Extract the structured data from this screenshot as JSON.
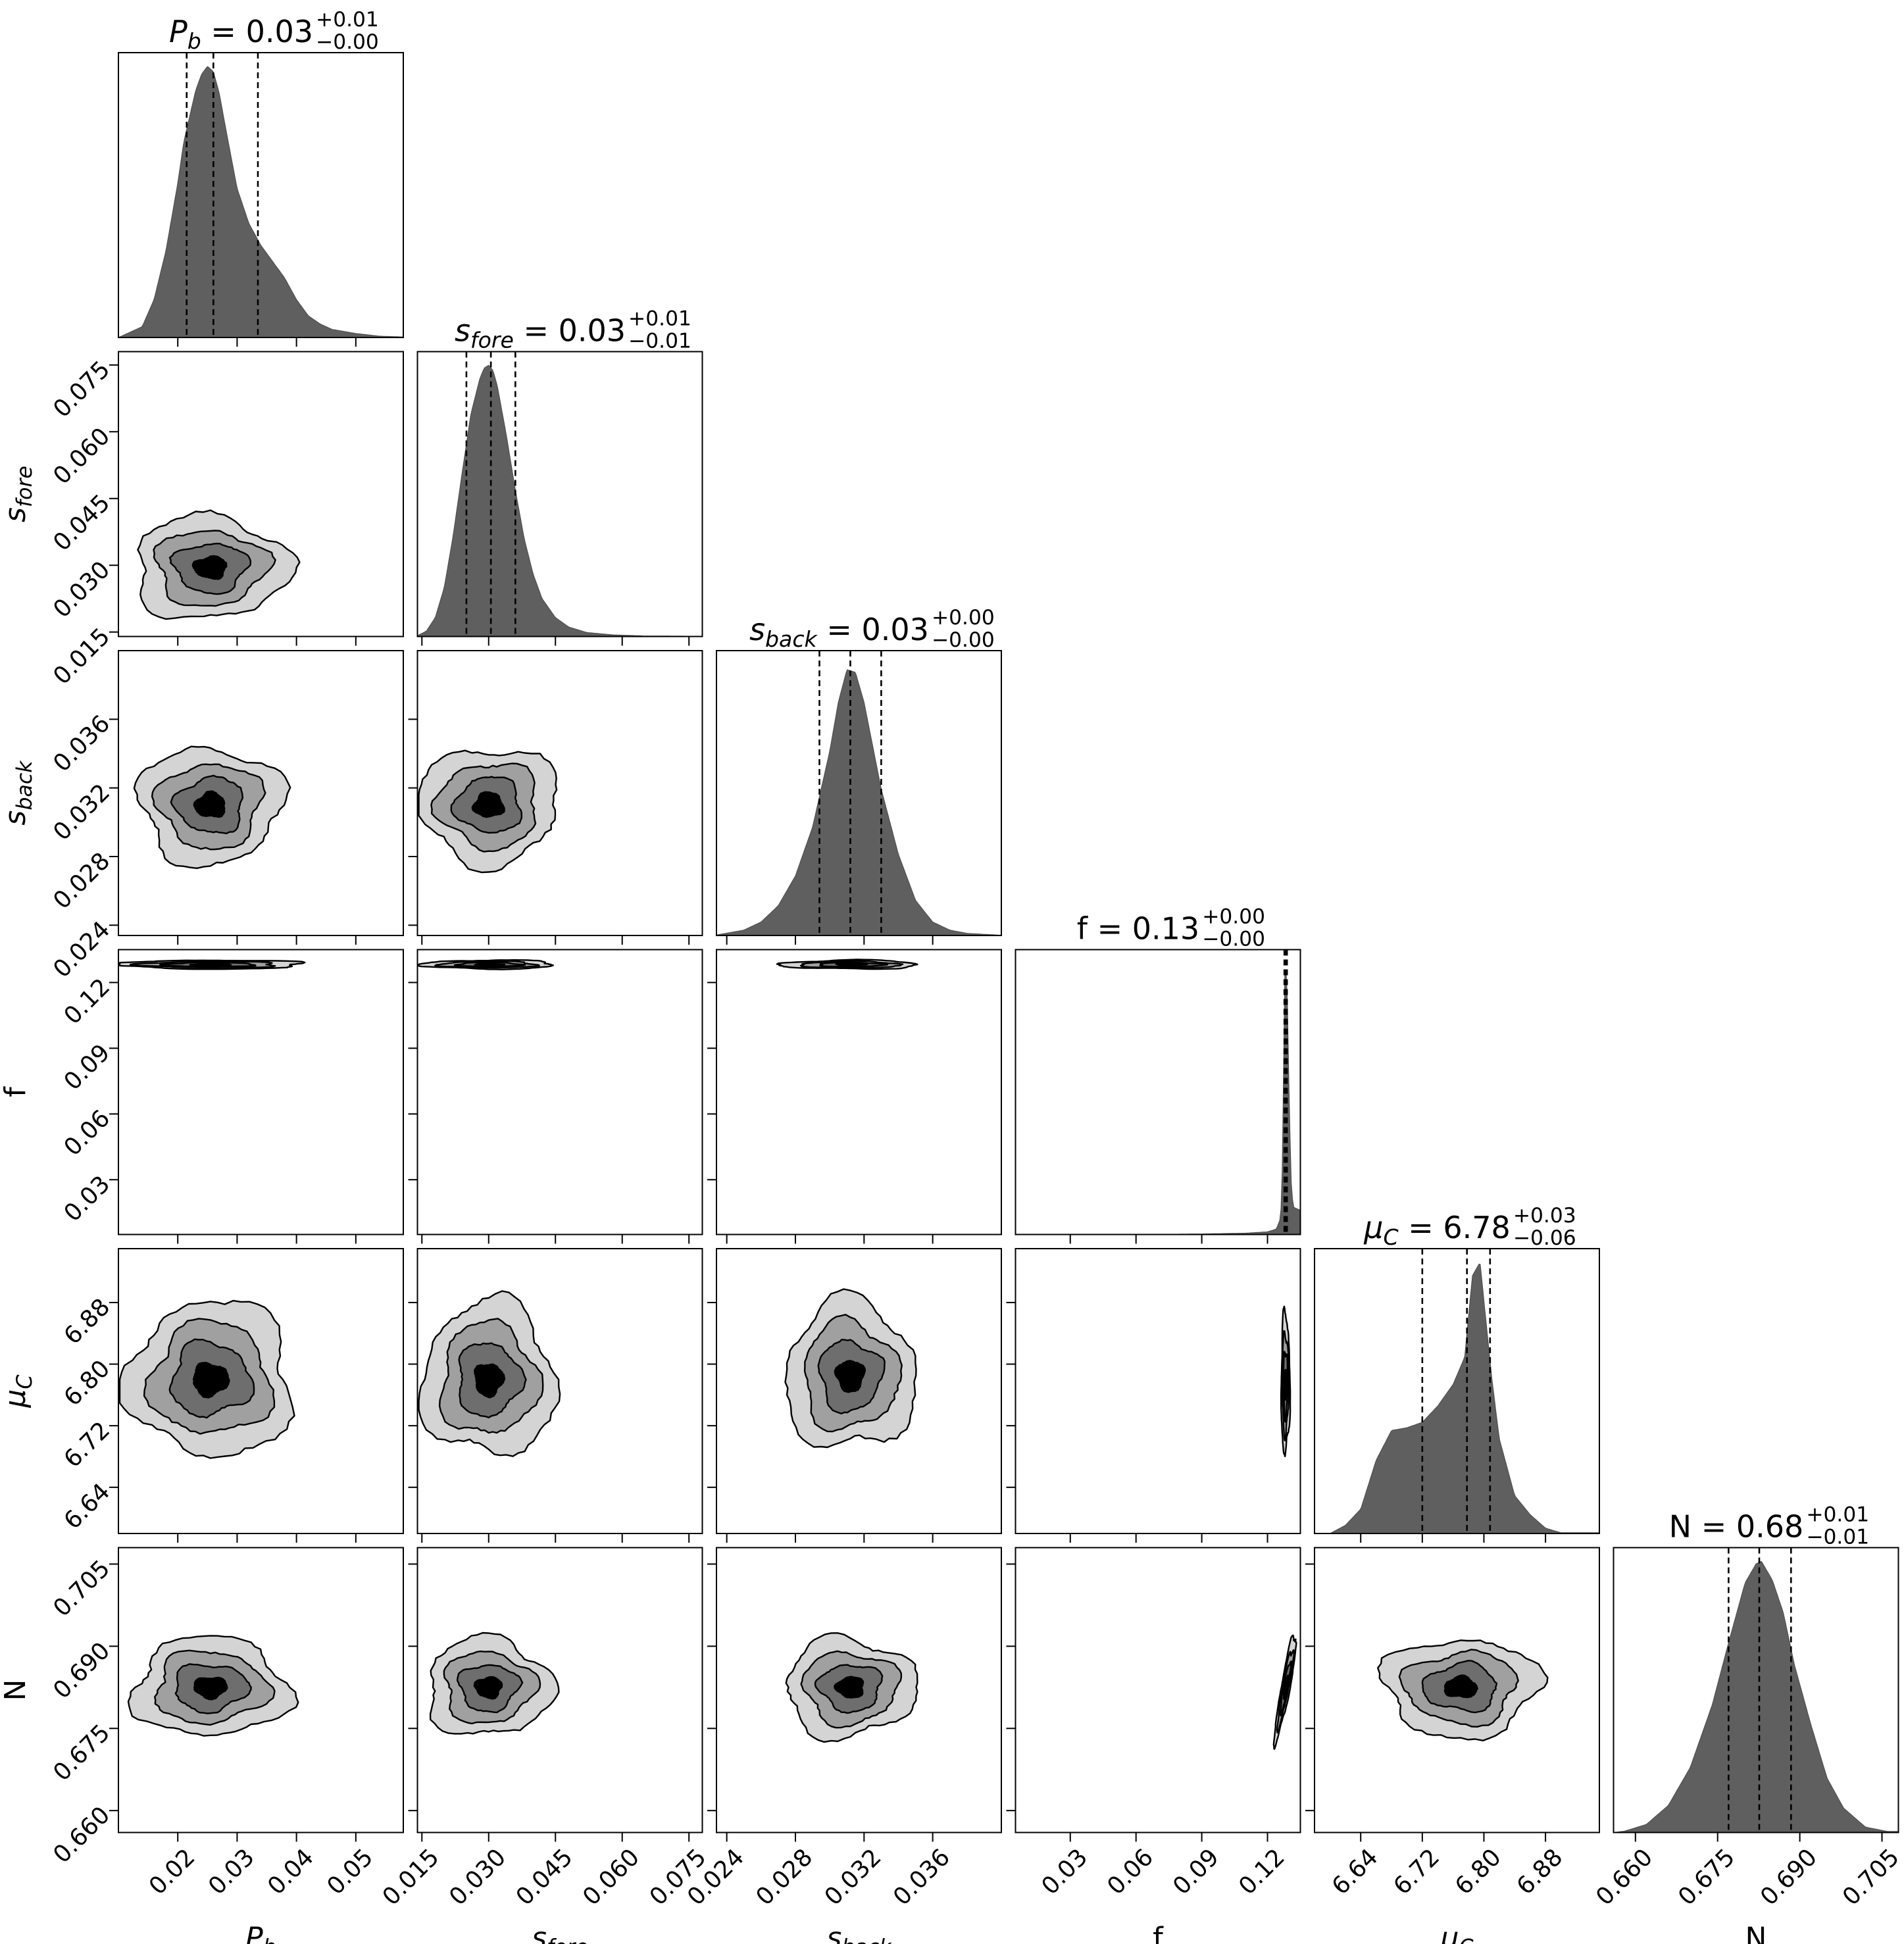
{
  "chart_data": {
    "type": "corner",
    "description_words": "posterior corner plot",
    "parameters": [
      {
        "key": "Pb",
        "label": "P",
        "label_sub": "b",
        "range": [
          0.01,
          0.058
        ],
        "ticks": [
          0.02,
          0.03,
          0.04,
          0.05
        ],
        "tick_labels": [
          "0.02",
          "0.03",
          "0.04",
          "0.05"
        ],
        "title_value": "0.03",
        "title_plus": "+0.01",
        "title_minus": "−0.00",
        "quantiles": [
          0.0215,
          0.026,
          0.0335
        ]
      },
      {
        "key": "sfore",
        "label": "s",
        "label_sub": "fore",
        "range": [
          0.014,
          0.078
        ],
        "ticks": [
          0.015,
          0.03,
          0.045,
          0.06,
          0.075
        ],
        "tick_labels": [
          "0.015",
          "0.030",
          "0.045",
          "0.060",
          "0.075"
        ],
        "title_value": "0.03",
        "title_plus": "+0.01",
        "title_minus": "−0.01",
        "quantiles": [
          0.025,
          0.0305,
          0.036
        ]
      },
      {
        "key": "sback",
        "label": "s",
        "label_sub": "back",
        "range": [
          0.0234,
          0.04
        ],
        "ticks": [
          0.024,
          0.028,
          0.032,
          0.036
        ],
        "tick_labels": [
          "0.024",
          "0.028",
          "0.032",
          "0.036"
        ],
        "title_value": "0.03",
        "title_plus": "+0.00",
        "title_minus": "−0.00",
        "quantiles": [
          0.0294,
          0.0312,
          0.033
        ]
      },
      {
        "key": "f",
        "label": "f",
        "label_sub": "",
        "range": [
          0.005,
          0.135
        ],
        "ticks": [
          0.03,
          0.06,
          0.09,
          0.12
        ],
        "tick_labels": [
          "0.03",
          "0.06",
          "0.09",
          "0.12"
        ],
        "title_value": "0.13",
        "title_plus": "+0.00",
        "title_minus": "−0.00",
        "quantiles": [
          0.1277,
          0.1283,
          0.1289
        ]
      },
      {
        "key": "muC",
        "label": "μ",
        "label_sub": "C",
        "range": [
          6.58,
          6.95
        ],
        "ticks": [
          6.64,
          6.72,
          6.8,
          6.88
        ],
        "tick_labels": [
          "6.64",
          "6.72",
          "6.80",
          "6.88"
        ],
        "title_value": "6.78",
        "title_plus": "+0.03",
        "title_minus": "−0.06",
        "quantiles": [
          6.72,
          6.778,
          6.808
        ]
      },
      {
        "key": "N",
        "label": "N",
        "label_sub": "",
        "range": [
          0.656,
          0.708
        ],
        "ticks": [
          0.66,
          0.675,
          0.69,
          0.705
        ],
        "tick_labels": [
          "0.660",
          "0.675",
          "0.690",
          "0.705"
        ],
        "title_value": "0.68",
        "title_plus": "+0.01",
        "title_minus": "−0.01",
        "quantiles": [
          0.677,
          0.6826,
          0.6884
        ]
      }
    ],
    "marginals": {
      "Pb": {
        "x": [
          0.011,
          0.014,
          0.016,
          0.018,
          0.02,
          0.021,
          0.023,
          0.024,
          0.025,
          0.026,
          0.027,
          0.028,
          0.03,
          0.032,
          0.034,
          0.036,
          0.038,
          0.04,
          0.042,
          0.044,
          0.046,
          0.05,
          0.054,
          0.058
        ],
        "y": [
          0.01,
          0.04,
          0.14,
          0.32,
          0.57,
          0.72,
          0.91,
          0.97,
          1.0,
          0.98,
          0.9,
          0.78,
          0.55,
          0.42,
          0.34,
          0.28,
          0.22,
          0.14,
          0.08,
          0.05,
          0.03,
          0.015,
          0.005,
          0.002
        ]
      },
      "sfore": {
        "x": [
          0.014,
          0.016,
          0.018,
          0.02,
          0.022,
          0.024,
          0.026,
          0.028,
          0.029,
          0.03,
          0.031,
          0.032,
          0.034,
          0.036,
          0.038,
          0.04,
          0.042,
          0.045,
          0.048,
          0.052,
          0.058,
          0.065,
          0.078
        ],
        "y": [
          0.003,
          0.02,
          0.07,
          0.18,
          0.37,
          0.6,
          0.82,
          0.95,
          0.99,
          1.0,
          0.98,
          0.92,
          0.74,
          0.54,
          0.36,
          0.23,
          0.14,
          0.07,
          0.035,
          0.015,
          0.006,
          0.002,
          0.001
        ]
      },
      "sback": {
        "x": [
          0.0234,
          0.025,
          0.026,
          0.027,
          0.028,
          0.029,
          0.03,
          0.0305,
          0.031,
          0.0315,
          0.032,
          0.0325,
          0.033,
          0.034,
          0.035,
          0.036,
          0.037,
          0.038,
          0.04
        ],
        "y": [
          0.002,
          0.02,
          0.05,
          0.11,
          0.22,
          0.4,
          0.68,
          0.86,
          0.98,
          0.97,
          0.86,
          0.7,
          0.54,
          0.3,
          0.13,
          0.05,
          0.02,
          0.008,
          0.001
        ]
      },
      "f": {
        "x": [
          0.06,
          0.09,
          0.11,
          0.12,
          0.124,
          0.126,
          0.127,
          0.1277,
          0.1283,
          0.129,
          0.13,
          0.131,
          0.132,
          0.135
        ],
        "y": [
          0.0,
          0.002,
          0.005,
          0.01,
          0.02,
          0.06,
          0.3,
          0.95,
          1.0,
          0.9,
          0.45,
          0.15,
          0.1,
          0.09
        ]
      },
      "muC": {
        "x": [
          6.6,
          6.62,
          6.64,
          6.66,
          6.68,
          6.7,
          6.72,
          6.74,
          6.76,
          6.775,
          6.785,
          6.795,
          6.8,
          6.81,
          6.82,
          6.84,
          6.86,
          6.88,
          6.9
        ],
        "y": [
          0.0,
          0.03,
          0.09,
          0.27,
          0.38,
          0.39,
          0.41,
          0.47,
          0.55,
          0.65,
          0.95,
          1.0,
          0.86,
          0.58,
          0.35,
          0.14,
          0.07,
          0.02,
          0.003
        ]
      },
      "N": {
        "x": [
          0.658,
          0.662,
          0.666,
          0.67,
          0.674,
          0.677,
          0.68,
          0.682,
          0.683,
          0.685,
          0.687,
          0.689,
          0.692,
          0.695,
          0.698,
          0.702,
          0.706
        ],
        "y": [
          0.005,
          0.03,
          0.1,
          0.24,
          0.47,
          0.7,
          0.92,
          0.99,
          1.0,
          0.93,
          0.81,
          0.62,
          0.4,
          0.2,
          0.09,
          0.02,
          0.004
        ]
      }
    },
    "contour_centers": [
      {
        "row": "sfore",
        "col": "Pb",
        "center": [
          0.0255,
          0.0295
        ],
        "spread": [
          0.0065,
          0.0058
        ],
        "rho": 0.0
      },
      {
        "row": "sback",
        "col": "Pb",
        "center": [
          0.0255,
          0.031
        ],
        "spread": [
          0.006,
          0.0017
        ],
        "rho": 0.0
      },
      {
        "row": "sback",
        "col": "sfore",
        "center": [
          0.03,
          0.031
        ],
        "spread": [
          0.0078,
          0.0017
        ],
        "rho": 0.0
      },
      {
        "row": "f",
        "col": "Pb",
        "center": [
          0.0255,
          0.1282
        ],
        "spread": [
          0.008,
          0.001
        ],
        "rho": 0.0
      },
      {
        "row": "f",
        "col": "sfore",
        "center": [
          0.03,
          0.1282
        ],
        "spread": [
          0.0075,
          0.001
        ],
        "rho": 0.0
      },
      {
        "row": "f",
        "col": "sback",
        "center": [
          0.0312,
          0.1282
        ],
        "spread": [
          0.002,
          0.001
        ],
        "rho": 0.0
      },
      {
        "row": "muC",
        "col": "Pb",
        "center": [
          0.0255,
          6.78
        ],
        "spread": [
          0.007,
          0.05
        ],
        "rho": 0.0
      },
      {
        "row": "muC",
        "col": "sfore",
        "center": [
          0.03,
          6.78
        ],
        "spread": [
          0.0075,
          0.05
        ],
        "rho": 0.0
      },
      {
        "row": "muC",
        "col": "sback",
        "center": [
          0.0312,
          6.785
        ],
        "spread": [
          0.0019,
          0.048
        ],
        "rho": 0.0
      },
      {
        "row": "muC",
        "col": "f",
        "center": [
          0.1282,
          6.775
        ],
        "spread": [
          0.001,
          0.045
        ],
        "rho": 0.0
      },
      {
        "row": "N",
        "col": "Pb",
        "center": [
          0.0255,
          0.6825
        ],
        "spread": [
          0.0065,
          0.0045
        ],
        "rho": 0.0
      },
      {
        "row": "N",
        "col": "sfore",
        "center": [
          0.03,
          0.6825
        ],
        "spread": [
          0.007,
          0.0045
        ],
        "rho": 0.0
      },
      {
        "row": "N",
        "col": "sback",
        "center": [
          0.0312,
          0.6825
        ],
        "spread": [
          0.0019,
          0.0045
        ],
        "rho": 0.0
      },
      {
        "row": "N",
        "col": "f",
        "center": [
          0.1282,
          0.6825
        ],
        "spread": [
          0.001,
          0.005
        ],
        "rho": 0.3
      },
      {
        "row": "N",
        "col": "muC",
        "center": [
          6.77,
          0.6825
        ],
        "spread": [
          0.05,
          0.0045
        ],
        "rho": 0.0
      }
    ],
    "grid": false,
    "legend": "none"
  }
}
